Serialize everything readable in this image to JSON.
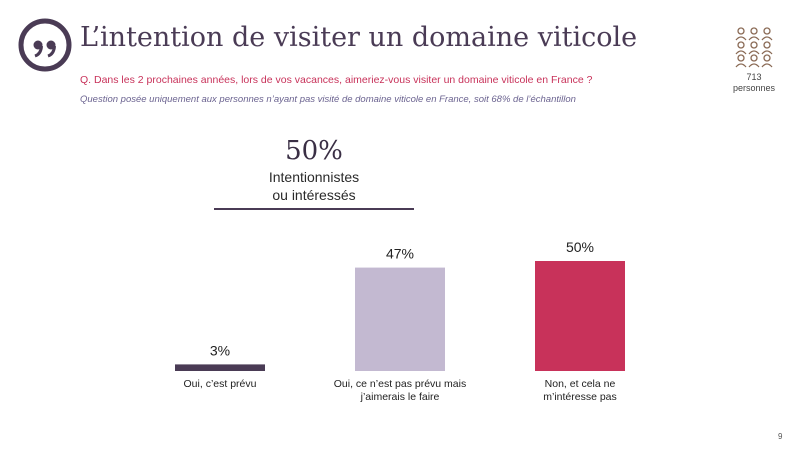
{
  "header": {
    "title": "L’intention de visiter un domaine viticole",
    "question": "Q. Dans les 2 prochaines années, lors de vos vacances, aimeriez-vous visiter un domaine viticole en France ?",
    "note": "Question posée uniquement aux personnes n’ayant pas visité de domaine viticole en France, soit 68% de l’échantillon"
  },
  "sample": {
    "count": "713",
    "label": "personnes"
  },
  "summary": {
    "value": "50%",
    "label_line1": "Intentionnistes",
    "label_line2": "ou intéressés"
  },
  "page_number": "9",
  "colors": {
    "primary": "#4a3b55",
    "accent": "#c8325a",
    "lavender": "#c3b9d1",
    "bar_dark": "#4a3b55"
  },
  "chart_data": {
    "type": "bar",
    "categories": [
      [
        "Oui, c’est prévu"
      ],
      [
        "Oui, ce n’est pas prévu mais",
        "j’aimerais le faire"
      ],
      [
        "Non, et cela ne",
        "m’intéresse pas"
      ]
    ],
    "values": [
      3,
      47,
      50
    ],
    "value_labels": [
      "3%",
      "47%",
      "50%"
    ],
    "bar_colors": [
      "#4a3b55",
      "#c3b9d1",
      "#c8325a"
    ],
    "ylim": [
      0,
      50
    ]
  }
}
